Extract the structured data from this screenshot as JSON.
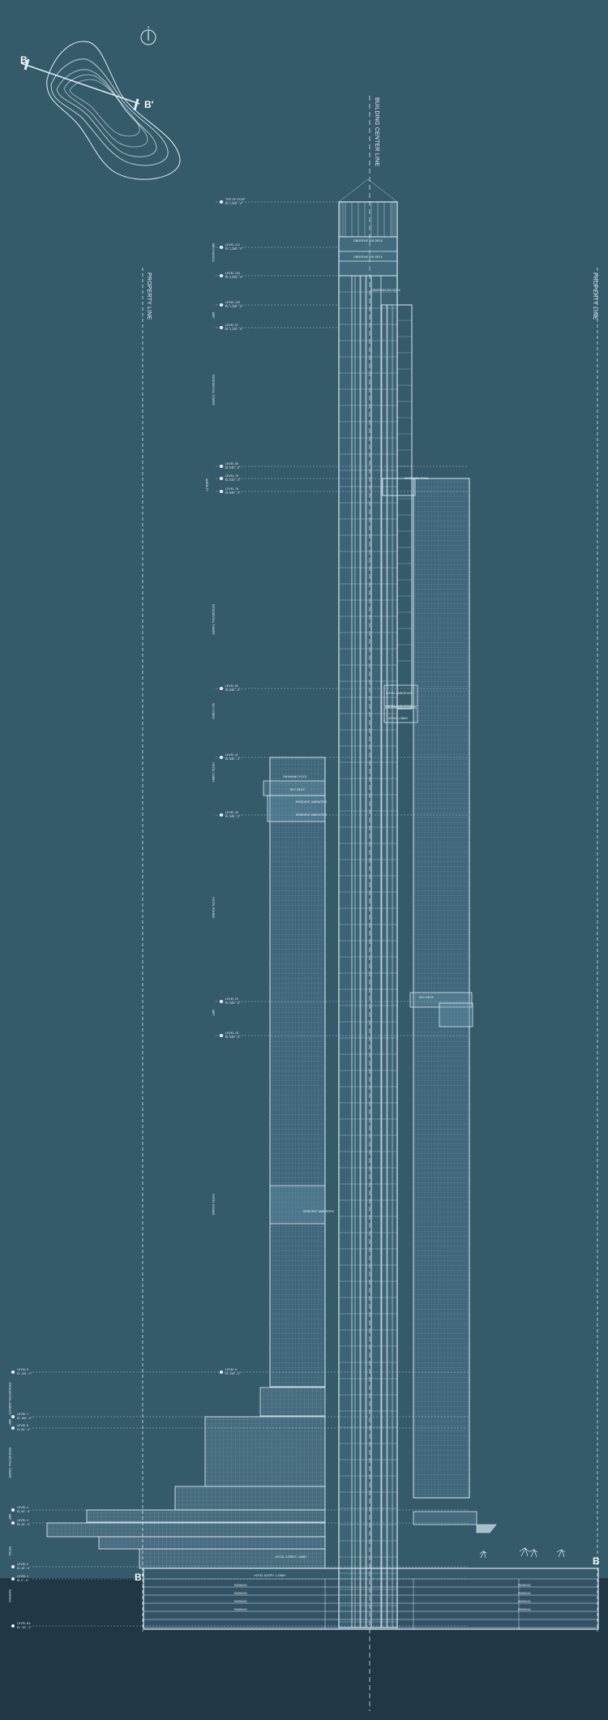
{
  "drawing": {
    "north_label": "N",
    "section_marker_left": "B",
    "section_marker_right": "B'",
    "building_center_line": "BUILDING CENTER LINE",
    "property_line_left": "PROPERTY LINE",
    "property_line_right": "PROPERTY LINE",
    "section_mark_left_bottom": "B'",
    "section_mark_right_bottom": "B"
  },
  "level_markers": [
    {
      "label": "TOP OF ROOF",
      "elev": "EL 1,320' - 0\""
    },
    {
      "label": "LEVEL 110",
      "elev": "EL 1,260' - 0\""
    },
    {
      "label": "LEVEL 104",
      "elev": "EL 1,200' - 0\""
    },
    {
      "label": "LEVEL 100",
      "elev": "EL 1,150' - 0\""
    },
    {
      "label": "LEVEL 97",
      "elev": "EL 1,120' - 0\""
    },
    {
      "label": "LEVEL 80",
      "elev": "EL 930' - 0\""
    },
    {
      "label": "LEVEL 78",
      "elev": "EL 910' - 0\""
    },
    {
      "label": "LEVEL 76",
      "elev": "EL 890' - 0\""
    },
    {
      "label": "LEVEL 50",
      "elev": "EL 640' - 0\""
    },
    {
      "label": "LEVEL 41",
      "elev": "EL 560' - 0\""
    },
    {
      "label": "LEVEL 34",
      "elev": "EL 490' - 0\""
    },
    {
      "label": "LEVEL 20",
      "elev": "EL 285' - 0\""
    },
    {
      "label": "LEVEL 18",
      "elev": "EL 250' - 0\""
    },
    {
      "label": "LEVEL 9",
      "elev": "EL 130' - 0\""
    },
    {
      "label": "LEVEL 7",
      "elev": "EL 100' - 0\""
    },
    {
      "label": "LEVEL 6",
      "elev": "EL 80' - 0\""
    },
    {
      "label": "LEVEL 4",
      "elev": "EL 50' - 0\""
    },
    {
      "label": "LEVEL 3",
      "elev": "EL 40' - 0\""
    },
    {
      "label": "LEVEL 2",
      "elev": "EL 25' - 0\""
    },
    {
      "label": "LEVEL 1",
      "elev": "EL 0' - 0\""
    },
    {
      "label": "LEVEL B4",
      "elev": "EL -50' - 0\""
    }
  ],
  "zone_labels": [
    "MECHANICAL",
    "MEP",
    "RESIDENTIAL TOWER",
    "AMENITY",
    "RESIDENTIAL TOWER",
    "SKY LOBBY",
    "HOTEL LOBBY",
    "HOTEL ROOMS",
    "MEP",
    "HOTEL ROOMS",
    "RESIDENTIAL AMENITY",
    "MEP",
    "RESIDENTIAL TOWER",
    "MEP",
    "RETAIL",
    "PARKING"
  ],
  "room_labels": [
    "OBSERVATION DECK",
    "OBSERVATION DECK",
    "OBSERVATION DECK",
    "SWIMMING POOL",
    "HOTEL AMENITIES",
    "HOTEL AMENITIES",
    "HOTEL LOBBY",
    "SWIMMING POOL",
    "SKY DECK",
    "RESIDENT AMENITIES",
    "RESIDENT AMENITIES",
    "SKY DECK",
    "RESIDENT AMENITIES",
    "HOTEL ENTRY / LOBBY",
    "HOTEL STREET LOBBY",
    "PARKING",
    "PARKING",
    "PARKING",
    "PARKING",
    "PARKING",
    "PARKING",
    "PARKING",
    "PARKING"
  ],
  "colors": {
    "background": "#355a6a",
    "line": "#d7eaf2",
    "ground": "#203746"
  }
}
